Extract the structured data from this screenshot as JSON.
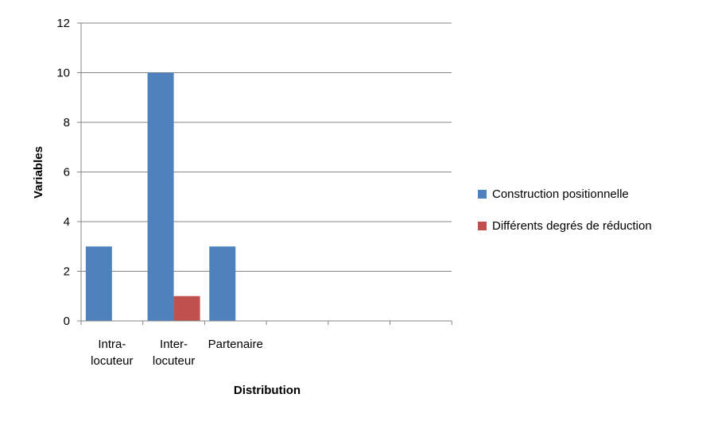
{
  "chart_data": {
    "type": "bar",
    "title": "",
    "xlabel": "Distribution",
    "ylabel": "Variables",
    "categories": [
      [
        "Intra-",
        "locuteur"
      ],
      [
        "Inter-",
        "locuteur"
      ],
      [
        "Partenaire"
      ]
    ],
    "series": [
      {
        "name": "Construction positionnelle",
        "color": "#4f81bd",
        "values": [
          3,
          10,
          3
        ]
      },
      {
        "name": "Différents degrés de réduction",
        "color": "#c0504d",
        "values": [
          0,
          1,
          0
        ]
      }
    ],
    "ylim": [
      0,
      12
    ],
    "yticks": [
      0,
      2,
      4,
      6,
      8,
      10,
      12
    ],
    "grid": true,
    "legend_position": "right"
  }
}
